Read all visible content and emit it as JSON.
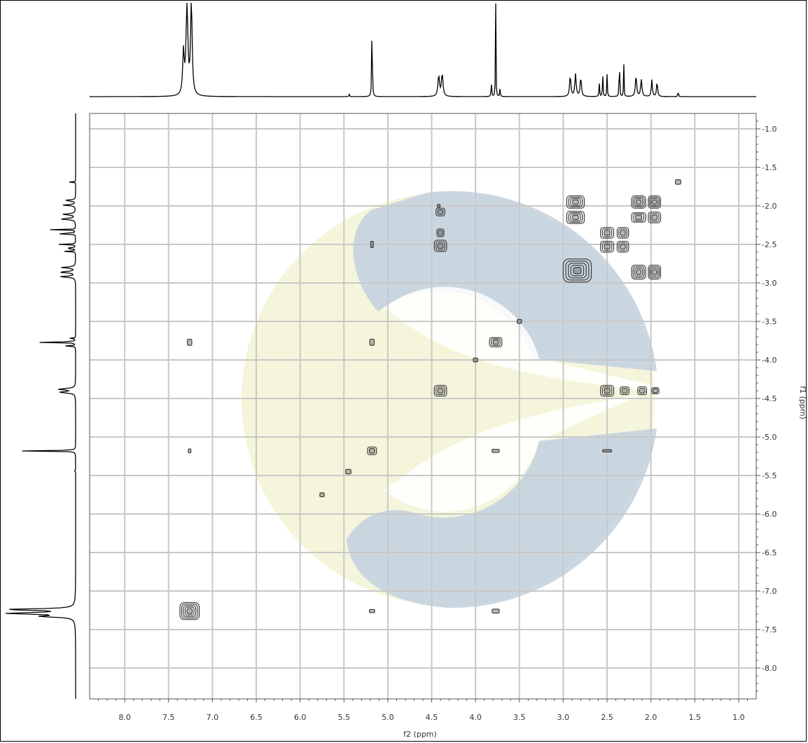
{
  "chart_data": {
    "type": "heatmap",
    "subtype": "2D NMR COSY contour plot",
    "xlabel": "f2 (ppm)",
    "ylabel": "f1 (ppm)",
    "xlim": [
      8.4,
      0.8
    ],
    "ylim": [
      0.8,
      8.4
    ],
    "x_ticks": [
      "8.0",
      "7.5",
      "7.0",
      "6.5",
      "6.0",
      "5.5",
      "5.0",
      "4.5",
      "4.0",
      "3.5",
      "3.0",
      "2.5",
      "2.0",
      "1.5",
      "1.0"
    ],
    "y_ticks": [
      "1.0",
      "1.5",
      "2.0",
      "2.5",
      "3.0",
      "3.5",
      "4.0",
      "4.5",
      "5.0",
      "5.5",
      "6.0",
      "6.5",
      "7.0",
      "7.5",
      "8.0"
    ],
    "grid": true,
    "watermark_colors": {
      "blue": "#c5d3df",
      "yellow": "#f1f2cf"
    },
    "contour_color": "#3d3d3d",
    "projection_peaks": [
      {
        "ppm": 7.29,
        "height": 0.98,
        "width": 0.035
      },
      {
        "ppm": 7.24,
        "height": 1.0,
        "width": 0.03
      },
      {
        "ppm": 7.33,
        "height": 0.45,
        "width": 0.03
      },
      {
        "ppm": 5.18,
        "height": 0.97,
        "width": 0.01
      },
      {
        "ppm": 4.42,
        "height": 0.22,
        "width": 0.03
      },
      {
        "ppm": 4.38,
        "height": 0.24,
        "width": 0.03
      },
      {
        "ppm": 3.77,
        "height": 1.0,
        "width": 0.008
      },
      {
        "ppm": 3.82,
        "height": 0.18,
        "width": 0.01
      },
      {
        "ppm": 3.72,
        "height": 0.1,
        "width": 0.01
      },
      {
        "ppm": 2.92,
        "height": 0.22,
        "width": 0.025
      },
      {
        "ppm": 2.86,
        "height": 0.24,
        "width": 0.025
      },
      {
        "ppm": 2.8,
        "height": 0.2,
        "width": 0.025
      },
      {
        "ppm": 2.59,
        "height": 0.17,
        "width": 0.01
      },
      {
        "ppm": 2.55,
        "height": 0.26,
        "width": 0.01
      },
      {
        "ppm": 2.5,
        "height": 0.24,
        "width": 0.01
      },
      {
        "ppm": 2.36,
        "height": 0.61,
        "width": 0.008
      },
      {
        "ppm": 2.31,
        "height": 0.4,
        "width": 0.008
      },
      {
        "ppm": 2.17,
        "height": 0.22,
        "width": 0.025
      },
      {
        "ppm": 2.11,
        "height": 0.18,
        "width": 0.025
      },
      {
        "ppm": 1.99,
        "height": 0.18,
        "width": 0.02
      },
      {
        "ppm": 1.93,
        "height": 0.16,
        "width": 0.02
      },
      {
        "ppm": 1.69,
        "height": 0.1,
        "width": 0.008
      },
      {
        "ppm": 5.44,
        "height": 0.03,
        "width": 0.01
      }
    ],
    "cross_peaks": [
      {
        "f2": 7.26,
        "f1": 7.26,
        "w": 0.22,
        "h": 0.22
      },
      {
        "f2": 5.18,
        "f1": 5.18,
        "w": 0.1,
        "h": 0.1
      },
      {
        "f2": 5.45,
        "f1": 5.45,
        "w": 0.06,
        "h": 0.06
      },
      {
        "f2": 5.75,
        "f1": 5.75,
        "w": 0.05,
        "h": 0.05
      },
      {
        "f2": 4.4,
        "f1": 4.4,
        "w": 0.14,
        "h": 0.14
      },
      {
        "f2": 3.77,
        "f1": 3.77,
        "w": 0.14,
        "h": 0.12
      },
      {
        "f2": 4.0,
        "f1": 4.0,
        "w": 0.05,
        "h": 0.05
      },
      {
        "f2": 3.5,
        "f1": 3.5,
        "w": 0.05,
        "h": 0.05
      },
      {
        "f2": 2.84,
        "f1": 2.84,
        "w": 0.32,
        "h": 0.3
      },
      {
        "f2": 2.5,
        "f1": 2.35,
        "w": 0.15,
        "h": 0.14
      },
      {
        "f2": 2.32,
        "f1": 2.35,
        "w": 0.13,
        "h": 0.14
      },
      {
        "f2": 2.5,
        "f1": 2.53,
        "w": 0.15,
        "h": 0.14
      },
      {
        "f2": 2.32,
        "f1": 2.53,
        "w": 0.13,
        "h": 0.14
      },
      {
        "f2": 1.69,
        "f1": 1.69,
        "w": 0.06,
        "h": 0.06
      },
      {
        "f2": 4.4,
        "f1": 2.08,
        "w": 0.1,
        "h": 0.1
      },
      {
        "f2": 4.4,
        "f1": 2.35,
        "w": 0.08,
        "h": 0.1
      },
      {
        "f2": 4.4,
        "f1": 2.52,
        "w": 0.14,
        "h": 0.15
      },
      {
        "f2": 4.42,
        "f1": 2.0,
        "w": 0.03,
        "h": 0.04
      },
      {
        "f2": 2.5,
        "f1": 4.4,
        "w": 0.15,
        "h": 0.14
      },
      {
        "f2": 2.3,
        "f1": 4.4,
        "w": 0.1,
        "h": 0.1
      },
      {
        "f2": 2.1,
        "f1": 4.4,
        "w": 0.1,
        "h": 0.1
      },
      {
        "f2": 1.95,
        "f1": 4.4,
        "w": 0.08,
        "h": 0.08
      },
      {
        "f2": 2.86,
        "f1": 1.95,
        "w": 0.2,
        "h": 0.16
      },
      {
        "f2": 2.86,
        "f1": 2.15,
        "w": 0.2,
        "h": 0.16
      },
      {
        "f2": 2.14,
        "f1": 1.95,
        "w": 0.16,
        "h": 0.16
      },
      {
        "f2": 2.14,
        "f1": 2.15,
        "w": 0.16,
        "h": 0.12
      },
      {
        "f2": 1.96,
        "f1": 1.95,
        "w": 0.14,
        "h": 0.16
      },
      {
        "f2": 1.96,
        "f1": 2.15,
        "w": 0.14,
        "h": 0.14
      },
      {
        "f2": 2.14,
        "f1": 2.86,
        "w": 0.16,
        "h": 0.18
      },
      {
        "f2": 1.96,
        "f1": 2.86,
        "w": 0.14,
        "h": 0.18
      },
      {
        "f2": 5.18,
        "f1": 2.5,
        "w": 0.03,
        "h": 0.08
      },
      {
        "f2": 7.26,
        "f1": 3.77,
        "w": 0.05,
        "h": 0.08
      },
      {
        "f2": 5.18,
        "f1": 3.77,
        "w": 0.05,
        "h": 0.08
      },
      {
        "f2": 7.26,
        "f1": 5.18,
        "w": 0.03,
        "h": 0.05
      },
      {
        "f2": 3.77,
        "f1": 5.18,
        "w": 0.08,
        "h": 0.04
      },
      {
        "f2": 2.5,
        "f1": 5.18,
        "w": 0.1,
        "h": 0.03
      },
      {
        "f2": 5.18,
        "f1": 7.26,
        "w": 0.06,
        "h": 0.04
      },
      {
        "f2": 3.77,
        "f1": 7.26,
        "w": 0.08,
        "h": 0.05
      }
    ]
  }
}
